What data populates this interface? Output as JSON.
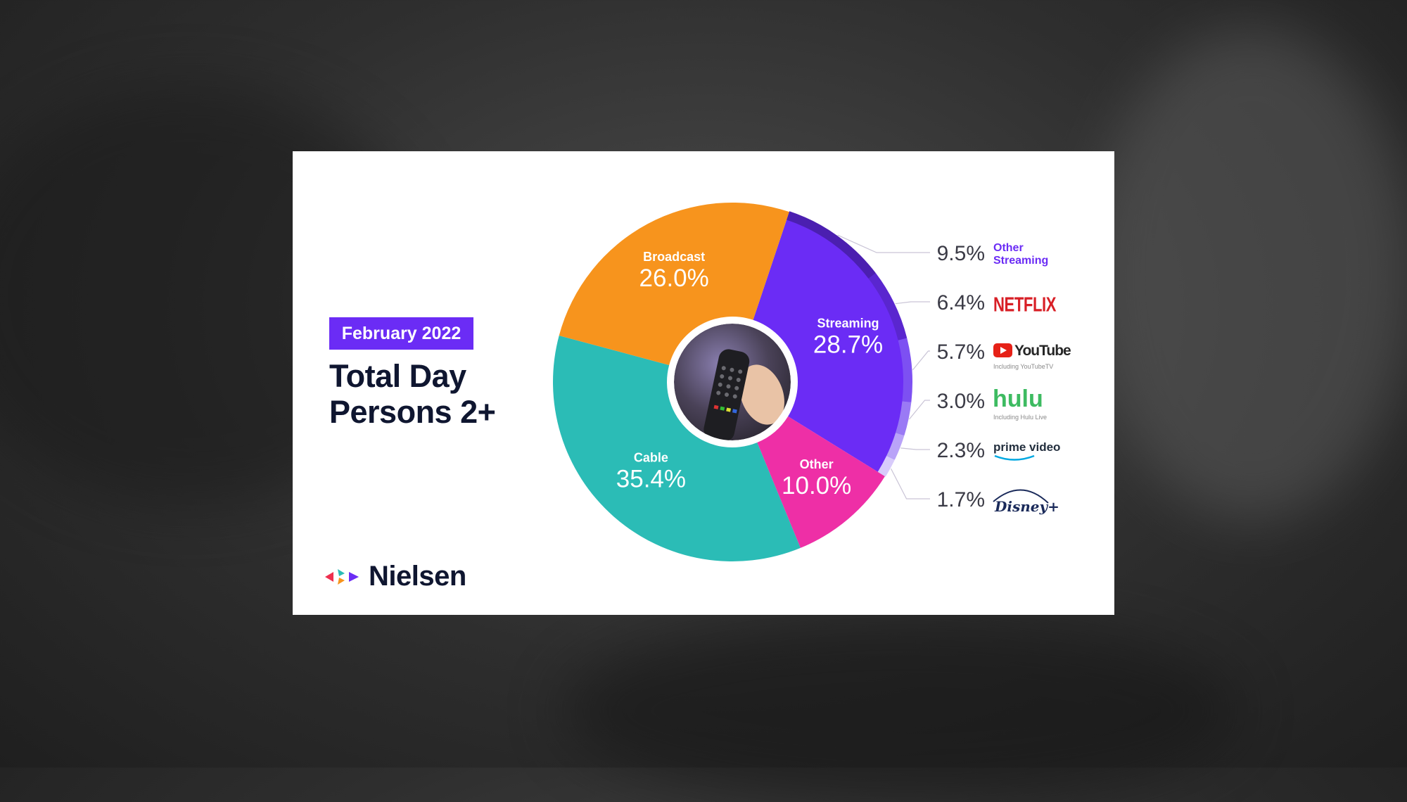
{
  "header": {
    "badge": "February 2022",
    "title_line1": "Total Day",
    "title_line2": "Persons 2+"
  },
  "brand": {
    "name": "Nielsen"
  },
  "colors": {
    "broadcast": "#f7941d",
    "streaming": "#6b2cf5",
    "other": "#ee2fa6",
    "cable": "#2bbcb6",
    "badge": "#6b2cf5",
    "title": "#0f1630"
  },
  "chart_data": {
    "type": "pie",
    "center_image": "hand-holding-tv-remote",
    "segments": [
      {
        "name": "Broadcast",
        "value": 26.0,
        "display": "26.0%"
      },
      {
        "name": "Streaming",
        "value": 28.7,
        "display": "28.7%"
      },
      {
        "name": "Other",
        "value": 10.0,
        "display": "10.0%"
      },
      {
        "name": "Cable",
        "value": 35.4,
        "display": "35.4%"
      }
    ],
    "streaming_breakdown": [
      {
        "name": "Other Streaming",
        "value": 9.5,
        "display": "9.5%",
        "logo": "Other Streaming",
        "logo_line1": "Other",
        "logo_line2": "Streaming"
      },
      {
        "name": "Netflix",
        "value": 6.4,
        "display": "6.4%",
        "logo": "NETFLIX"
      },
      {
        "name": "YouTube",
        "value": 5.7,
        "display": "5.7%",
        "logo": "YouTube",
        "logo_sub": "Including YouTubeTV"
      },
      {
        "name": "Hulu",
        "value": 3.0,
        "display": "3.0%",
        "logo": "hulu",
        "logo_sub": "Including Hulu Live"
      },
      {
        "name": "Prime Video",
        "value": 2.3,
        "display": "2.3%",
        "logo": "prime video"
      },
      {
        "name": "Disney+",
        "value": 1.7,
        "display": "1.7%",
        "logo": "Disney+"
      }
    ]
  }
}
